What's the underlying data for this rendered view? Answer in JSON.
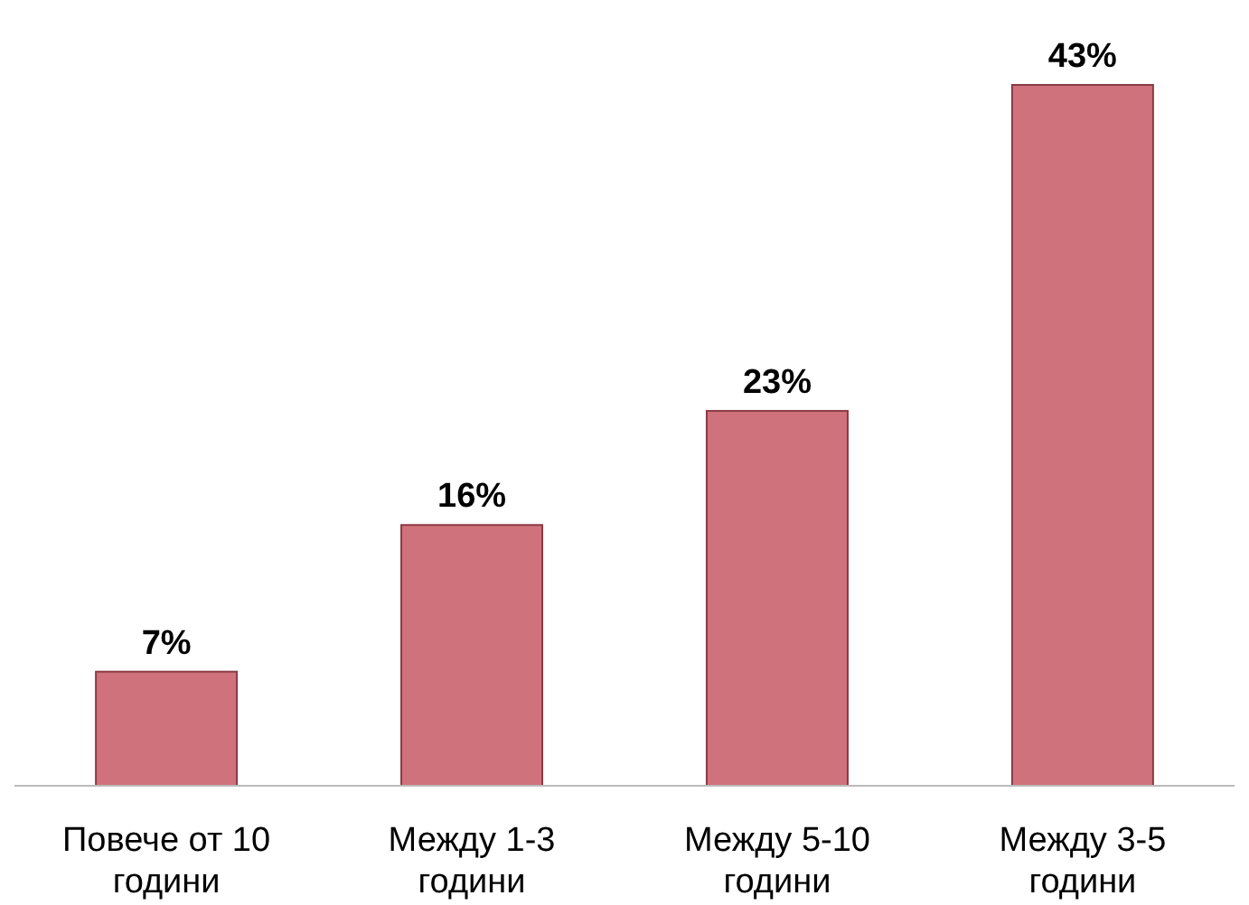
{
  "chart_data": {
    "type": "bar",
    "categories": [
      "Повече от 10 години",
      "Между 1-3 години",
      "Между 5-10 години",
      "Между 3-5 години"
    ],
    "values": [
      7,
      16,
      23,
      43
    ],
    "color": "#d0727c",
    "value_labels": [
      "7%",
      "16%",
      "23%",
      "43%"
    ]
  }
}
